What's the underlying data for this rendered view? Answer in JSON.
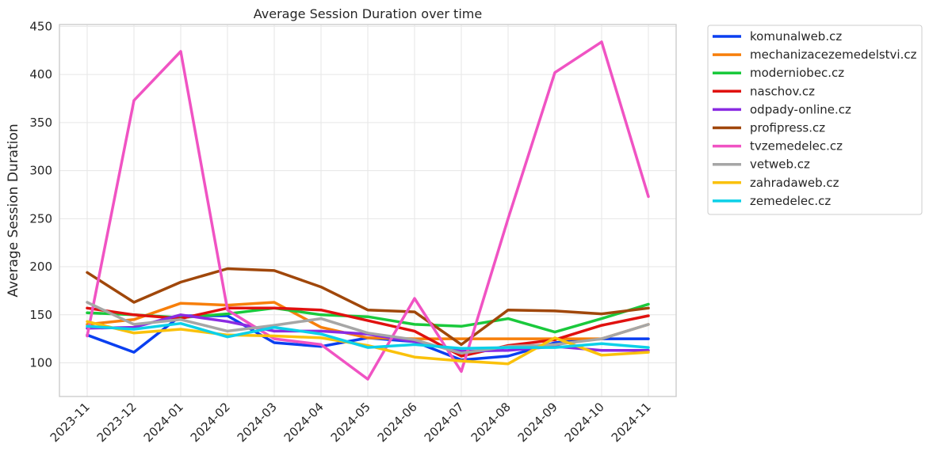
{
  "chart_data": {
    "type": "line",
    "title": "Average Session Duration over time",
    "xlabel": "",
    "ylabel": "Average Session Duration",
    "categories": [
      "2023-11",
      "2023-12",
      "2024-01",
      "2024-02",
      "2024-03",
      "2024-04",
      "2024-05",
      "2024-06",
      "2024-07",
      "2024-08",
      "2024-09",
      "2024-10",
      "2024-11"
    ],
    "ylim": [
      65,
      452
    ],
    "yticks": [
      100,
      150,
      200,
      250,
      300,
      350,
      400,
      450
    ],
    "grid": true,
    "legend_position": "outside-right",
    "series": [
      {
        "name": "komunalweb.cz",
        "color": "#0a3ff0",
        "values": [
          129,
          111,
          149,
          149,
          121,
          117,
          126,
          122,
          103,
          107,
          121,
          125,
          125
        ]
      },
      {
        "name": "mechanizacezemedelstvi.cz",
        "color": "#f77f0b",
        "values": [
          140,
          145,
          162,
          160,
          163,
          137,
          126,
          125,
          125,
          125,
          125,
          125,
          140
        ]
      },
      {
        "name": "moderniobec.cz",
        "color": "#1ac93c",
        "values": [
          152,
          150,
          147,
          151,
          157,
          150,
          148,
          140,
          138,
          146,
          132,
          146,
          161
        ]
      },
      {
        "name": "naschov.cz",
        "color": "#e0110f",
        "values": [
          157,
          150,
          146,
          157,
          157,
          155,
          144,
          133,
          107,
          118,
          124,
          139,
          149
        ]
      },
      {
        "name": "odpady-online.cz",
        "color": "#8a2be2",
        "values": [
          136,
          137,
          150,
          143,
          133,
          133,
          130,
          122,
          112,
          113,
          117,
          113,
          113
        ]
      },
      {
        "name": "profipress.cz",
        "color": "#a0470a",
        "values": [
          194,
          163,
          184,
          198,
          196,
          179,
          155,
          153,
          119,
          155,
          154,
          151,
          157
        ]
      },
      {
        "name": "tvzemedelec.cz",
        "color": "#f053c3",
        "values": [
          128,
          373,
          424,
          155,
          125,
          119,
          83,
          167,
          91,
          250,
          402,
          434,
          273
        ]
      },
      {
        "name": "vetweb.cz",
        "color": "#a6a6a6",
        "values": [
          163,
          140,
          145,
          133,
          139,
          146,
          131,
          124,
          110,
          117,
          119,
          125,
          140
        ]
      },
      {
        "name": "zahradaweb.cz",
        "color": "#fac10b",
        "values": [
          143,
          131,
          135,
          129,
          128,
          126,
          118,
          106,
          102,
          99,
          126,
          108,
          111
        ]
      },
      {
        "name": "zemedelec.cz",
        "color": "#0cd0e8",
        "values": [
          138,
          135,
          141,
          127,
          137,
          130,
          116,
          119,
          115,
          116,
          116,
          120,
          116
        ]
      }
    ]
  }
}
